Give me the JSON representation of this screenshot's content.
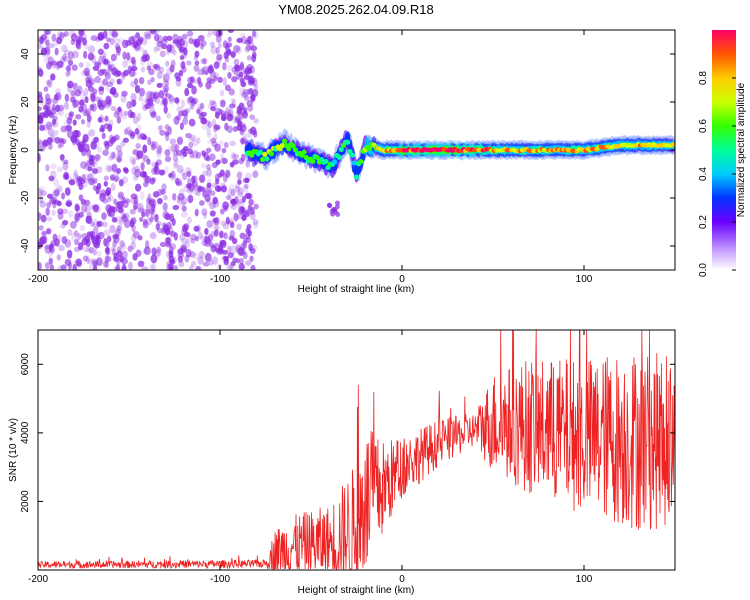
{
  "title": "YM08.2025.262.04.09.R18",
  "colors": {
    "snr_line": "#ee2222",
    "noise_points": "#8a2be2",
    "axis": "#000000"
  },
  "chart_data": [
    {
      "type": "heatmap",
      "name": "spectrogram",
      "xlabel": "Height of straight line (km)",
      "ylabel": "Frequency (Hz)",
      "xlim": [
        -200,
        150
      ],
      "ylim": [
        -50,
        50
      ],
      "x_ticks": [
        -200,
        -100,
        0,
        100
      ],
      "y_ticks": [
        -40,
        -20,
        0,
        20,
        40
      ],
      "noise_region_x": [
        -200,
        -80
      ],
      "signal_track": [
        {
          "x": -85,
          "y": 0,
          "a": 0.5
        },
        {
          "x": -75,
          "y": -3,
          "a": 0.55
        },
        {
          "x": -65,
          "y": 3,
          "a": 0.55
        },
        {
          "x": -55,
          "y": -2,
          "a": 0.5
        },
        {
          "x": -45,
          "y": -5,
          "a": 0.5
        },
        {
          "x": -38,
          "y": -7,
          "a": 0.45
        },
        {
          "x": -30,
          "y": 5,
          "a": 0.5
        },
        {
          "x": -25,
          "y": -10,
          "a": 0.45
        },
        {
          "x": -20,
          "y": 2,
          "a": 0.6
        },
        {
          "x": -10,
          "y": 0,
          "a": 0.7
        },
        {
          "x": 0,
          "y": 0,
          "a": 0.9
        },
        {
          "x": 20,
          "y": 0,
          "a": 1.0
        },
        {
          "x": 40,
          "y": 0,
          "a": 0.9
        },
        {
          "x": 60,
          "y": 0,
          "a": 0.7
        },
        {
          "x": 80,
          "y": 0,
          "a": 0.75
        },
        {
          "x": 100,
          "y": 0,
          "a": 0.8
        },
        {
          "x": 120,
          "y": 2,
          "a": 0.7
        },
        {
          "x": 150,
          "y": 2,
          "a": 0.7
        }
      ],
      "secondary_blob": {
        "x_range": [
          -40,
          -35
        ],
        "y_range": [
          -27,
          -22
        ]
      },
      "colorbar": {
        "label": "Normalized spectral amplitude",
        "range": [
          0,
          1
        ],
        "ticks": [
          0.0,
          0.2,
          0.4,
          0.6,
          0.8
        ],
        "tick_labels": [
          "0.0",
          "0.2",
          "0.4",
          "0.6",
          "0.8"
        ]
      }
    },
    {
      "type": "line",
      "name": "snr",
      "xlabel": "Height of straight line (km)",
      "ylabel": "SNR (10 * v/v)",
      "xlim": [
        -200,
        150
      ],
      "ylim": [
        0,
        7000
      ],
      "x_ticks": [
        -200,
        -100,
        0,
        100
      ],
      "y_ticks": [
        2000,
        4000,
        6000
      ],
      "envelope": [
        {
          "x": -200,
          "base": 150,
          "amp": 100
        },
        {
          "x": -75,
          "base": 180,
          "amp": 120
        },
        {
          "x": -70,
          "base": 500,
          "amp": 700
        },
        {
          "x": -60,
          "base": 700,
          "amp": 900
        },
        {
          "x": -40,
          "base": 800,
          "amp": 1100
        },
        {
          "x": -25,
          "base": 1200,
          "amp": 2000
        },
        {
          "x": -20,
          "base": 2000,
          "amp": 2200
        },
        {
          "x": -10,
          "base": 2400,
          "amp": 1400
        },
        {
          "x": 0,
          "base": 3000,
          "amp": 900
        },
        {
          "x": 20,
          "base": 3700,
          "amp": 700
        },
        {
          "x": 40,
          "base": 4100,
          "amp": 500
        },
        {
          "x": 50,
          "base": 4300,
          "amp": 1500
        },
        {
          "x": 70,
          "base": 4200,
          "amp": 2000
        },
        {
          "x": 100,
          "base": 3900,
          "amp": 2300
        },
        {
          "x": 130,
          "base": 3800,
          "amp": 2700
        },
        {
          "x": 150,
          "base": 3700,
          "amp": 2500
        }
      ]
    }
  ]
}
